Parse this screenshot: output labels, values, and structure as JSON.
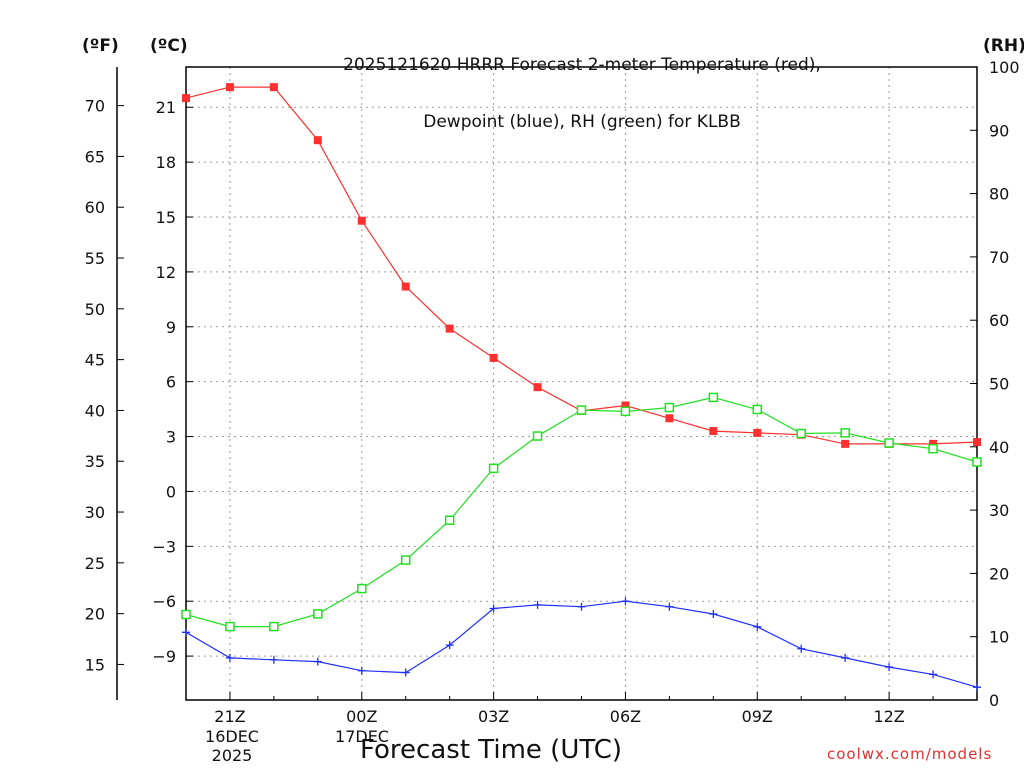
{
  "header": {
    "title_line1": "2025121620 HRRR Forecast 2-meter Temperature (red),",
    "title_line2": "Dewpoint (blue), RH (green) for KLBB",
    "unit_f": "(ºF)",
    "unit_c": "(ºC)",
    "unit_rh": "(RH)"
  },
  "footer": {
    "xlabel": "Forecast Time (UTC)",
    "credit": "coolwx.com/models",
    "date1": [
      "16DEC",
      "2025"
    ],
    "date2": [
      "17DEC"
    ]
  },
  "chart_data": {
    "type": "line",
    "title": "2025121620 HRRR Forecast 2-meter Temperature (red), Dewpoint (blue), RH (green) for KLBB",
    "xlabel": "Forecast Time (UTC)",
    "x": [
      "20Z",
      "21Z",
      "22Z",
      "23Z",
      "00Z",
      "01Z",
      "02Z",
      "03Z",
      "04Z",
      "05Z",
      "06Z",
      "07Z",
      "08Z",
      "09Z",
      "10Z",
      "11Z",
      "12Z",
      "13Z",
      "14Z"
    ],
    "x_tick_labels": [
      "21Z",
      "00Z",
      "03Z",
      "06Z",
      "09Z",
      "12Z"
    ],
    "y_left_c": {
      "label": "(ºC)",
      "ylim": [
        -11.4,
        23.2
      ],
      "ticks": [
        21,
        18,
        15,
        12,
        9,
        6,
        3,
        0,
        -3,
        -6,
        -9
      ]
    },
    "y_left_f": {
      "label": "(ºF)",
      "ylim": [
        11.5,
        73.8
      ],
      "ticks": [
        70,
        65,
        60,
        55,
        50,
        45,
        40,
        35,
        30,
        25,
        20,
        15
      ]
    },
    "y_right": {
      "label": "(RH)",
      "ylim": [
        0,
        100
      ],
      "ticks": [
        100,
        90,
        80,
        70,
        60,
        50,
        40,
        30,
        20,
        10,
        0
      ]
    },
    "grid": true,
    "series": [
      {
        "name": "Temperature",
        "color": "#ff3030",
        "marker": "filled-square",
        "axis": "celsius",
        "values": [
          21.5,
          22.1,
          22.1,
          19.2,
          14.8,
          11.2,
          8.9,
          7.3,
          5.7,
          4.4,
          4.7,
          4.0,
          3.3,
          3.2,
          3.1,
          2.6,
          2.6,
          2.6,
          2.7
        ]
      },
      {
        "name": "Dewpoint",
        "color": "#2030ff",
        "marker": "plus",
        "axis": "celsius",
        "values": [
          -7.7,
          -9.1,
          -9.2,
          -9.3,
          -9.8,
          -9.9,
          -8.4,
          -6.4,
          -6.2,
          -6.3,
          -6.0,
          -6.3,
          -6.7,
          -7.4,
          -8.6,
          -9.1,
          -9.6,
          -10.0,
          -10.7
        ]
      },
      {
        "name": "RH",
        "color": "#20e020",
        "marker": "open-square",
        "axis": "rh",
        "values": [
          13.5,
          11.6,
          11.6,
          13.6,
          17.6,
          22.1,
          28.4,
          36.6,
          41.7,
          45.8,
          45.6,
          46.2,
          47.8,
          45.9,
          42.1,
          42.2,
          40.6,
          39.7,
          37.6
        ]
      }
    ]
  }
}
